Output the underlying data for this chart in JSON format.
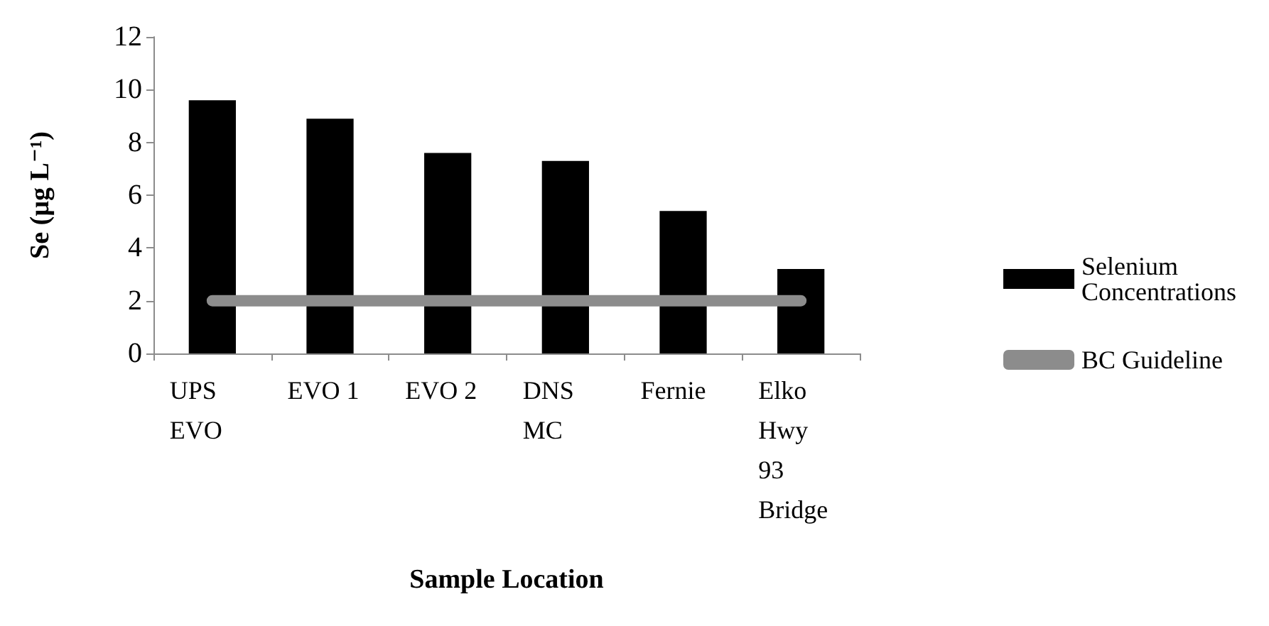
{
  "chart_data": {
    "type": "bar",
    "xlabel": "Sample Location",
    "ylabel": "Se (µg L⁻¹)",
    "categories": [
      "UPS EVO",
      "EVO 1",
      "EVO 2",
      "DNS MC",
      "Fernie",
      "Elko Hwy 93 Bridge"
    ],
    "series": [
      {
        "name": "Selenium Concentrations",
        "color": "#000000",
        "values": [
          9.6,
          8.9,
          7.6,
          7.3,
          5.4,
          3.2
        ]
      },
      {
        "name": "BC Guideline",
        "type": "line",
        "color": "#8c8c8c",
        "values": [
          2,
          2,
          2,
          2,
          2,
          2
        ]
      }
    ],
    "ylim": [
      0,
      12
    ],
    "yticks": [
      0,
      2,
      4,
      6,
      8,
      10,
      12
    ],
    "grid": false,
    "legend": "right",
    "marker": "none",
    "line_style": "solid"
  }
}
